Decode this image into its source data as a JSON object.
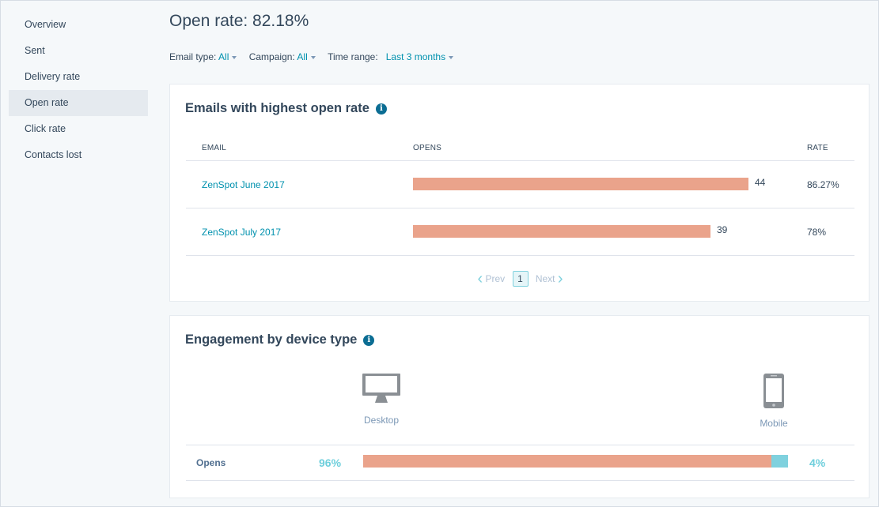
{
  "sidebar": {
    "items": [
      {
        "label": "Overview"
      },
      {
        "label": "Sent"
      },
      {
        "label": "Delivery rate"
      },
      {
        "label": "Open rate",
        "active": true
      },
      {
        "label": "Click rate"
      },
      {
        "label": "Contacts lost"
      }
    ]
  },
  "header": {
    "title": "Open rate: 82.18%"
  },
  "filters": {
    "email_type_label": "Email type:",
    "email_type_value": "All",
    "campaign_label": "Campaign:",
    "campaign_value": "All",
    "time_range_label": "Time range:",
    "time_range_value": "Last 3 months"
  },
  "highest_open": {
    "title": "Emails with highest open rate",
    "columns": {
      "email": "EMAIL",
      "opens": "OPENS",
      "rate": "RATE"
    },
    "rows": [
      {
        "email": "ZenSpot June 2017",
        "opens": "44",
        "rate": "86.27%"
      },
      {
        "email": "ZenSpot July 2017",
        "opens": "39",
        "rate": "78%"
      }
    ],
    "opens_max": 44,
    "pager": {
      "prev": "Prev",
      "page": "1",
      "next": "Next"
    }
  },
  "device": {
    "title": "Engagement by device type",
    "desktop_label": "Desktop",
    "mobile_label": "Mobile",
    "row_label": "Opens",
    "desktop_pct": "96%",
    "mobile_pct": "4%",
    "desktop_share": 0.96
  },
  "colors": {
    "bar": "#eaa38b",
    "mobile_bar": "#7fd1de",
    "link": "#0091ae",
    "info_icon": "#0b6d93"
  },
  "icons": {
    "info": "info-icon",
    "desktop": "desktop-monitor-icon",
    "mobile": "mobile-phone-icon",
    "prev": "chevron-left-icon",
    "next": "chevron-right-icon",
    "caret": "caret-down-icon"
  }
}
